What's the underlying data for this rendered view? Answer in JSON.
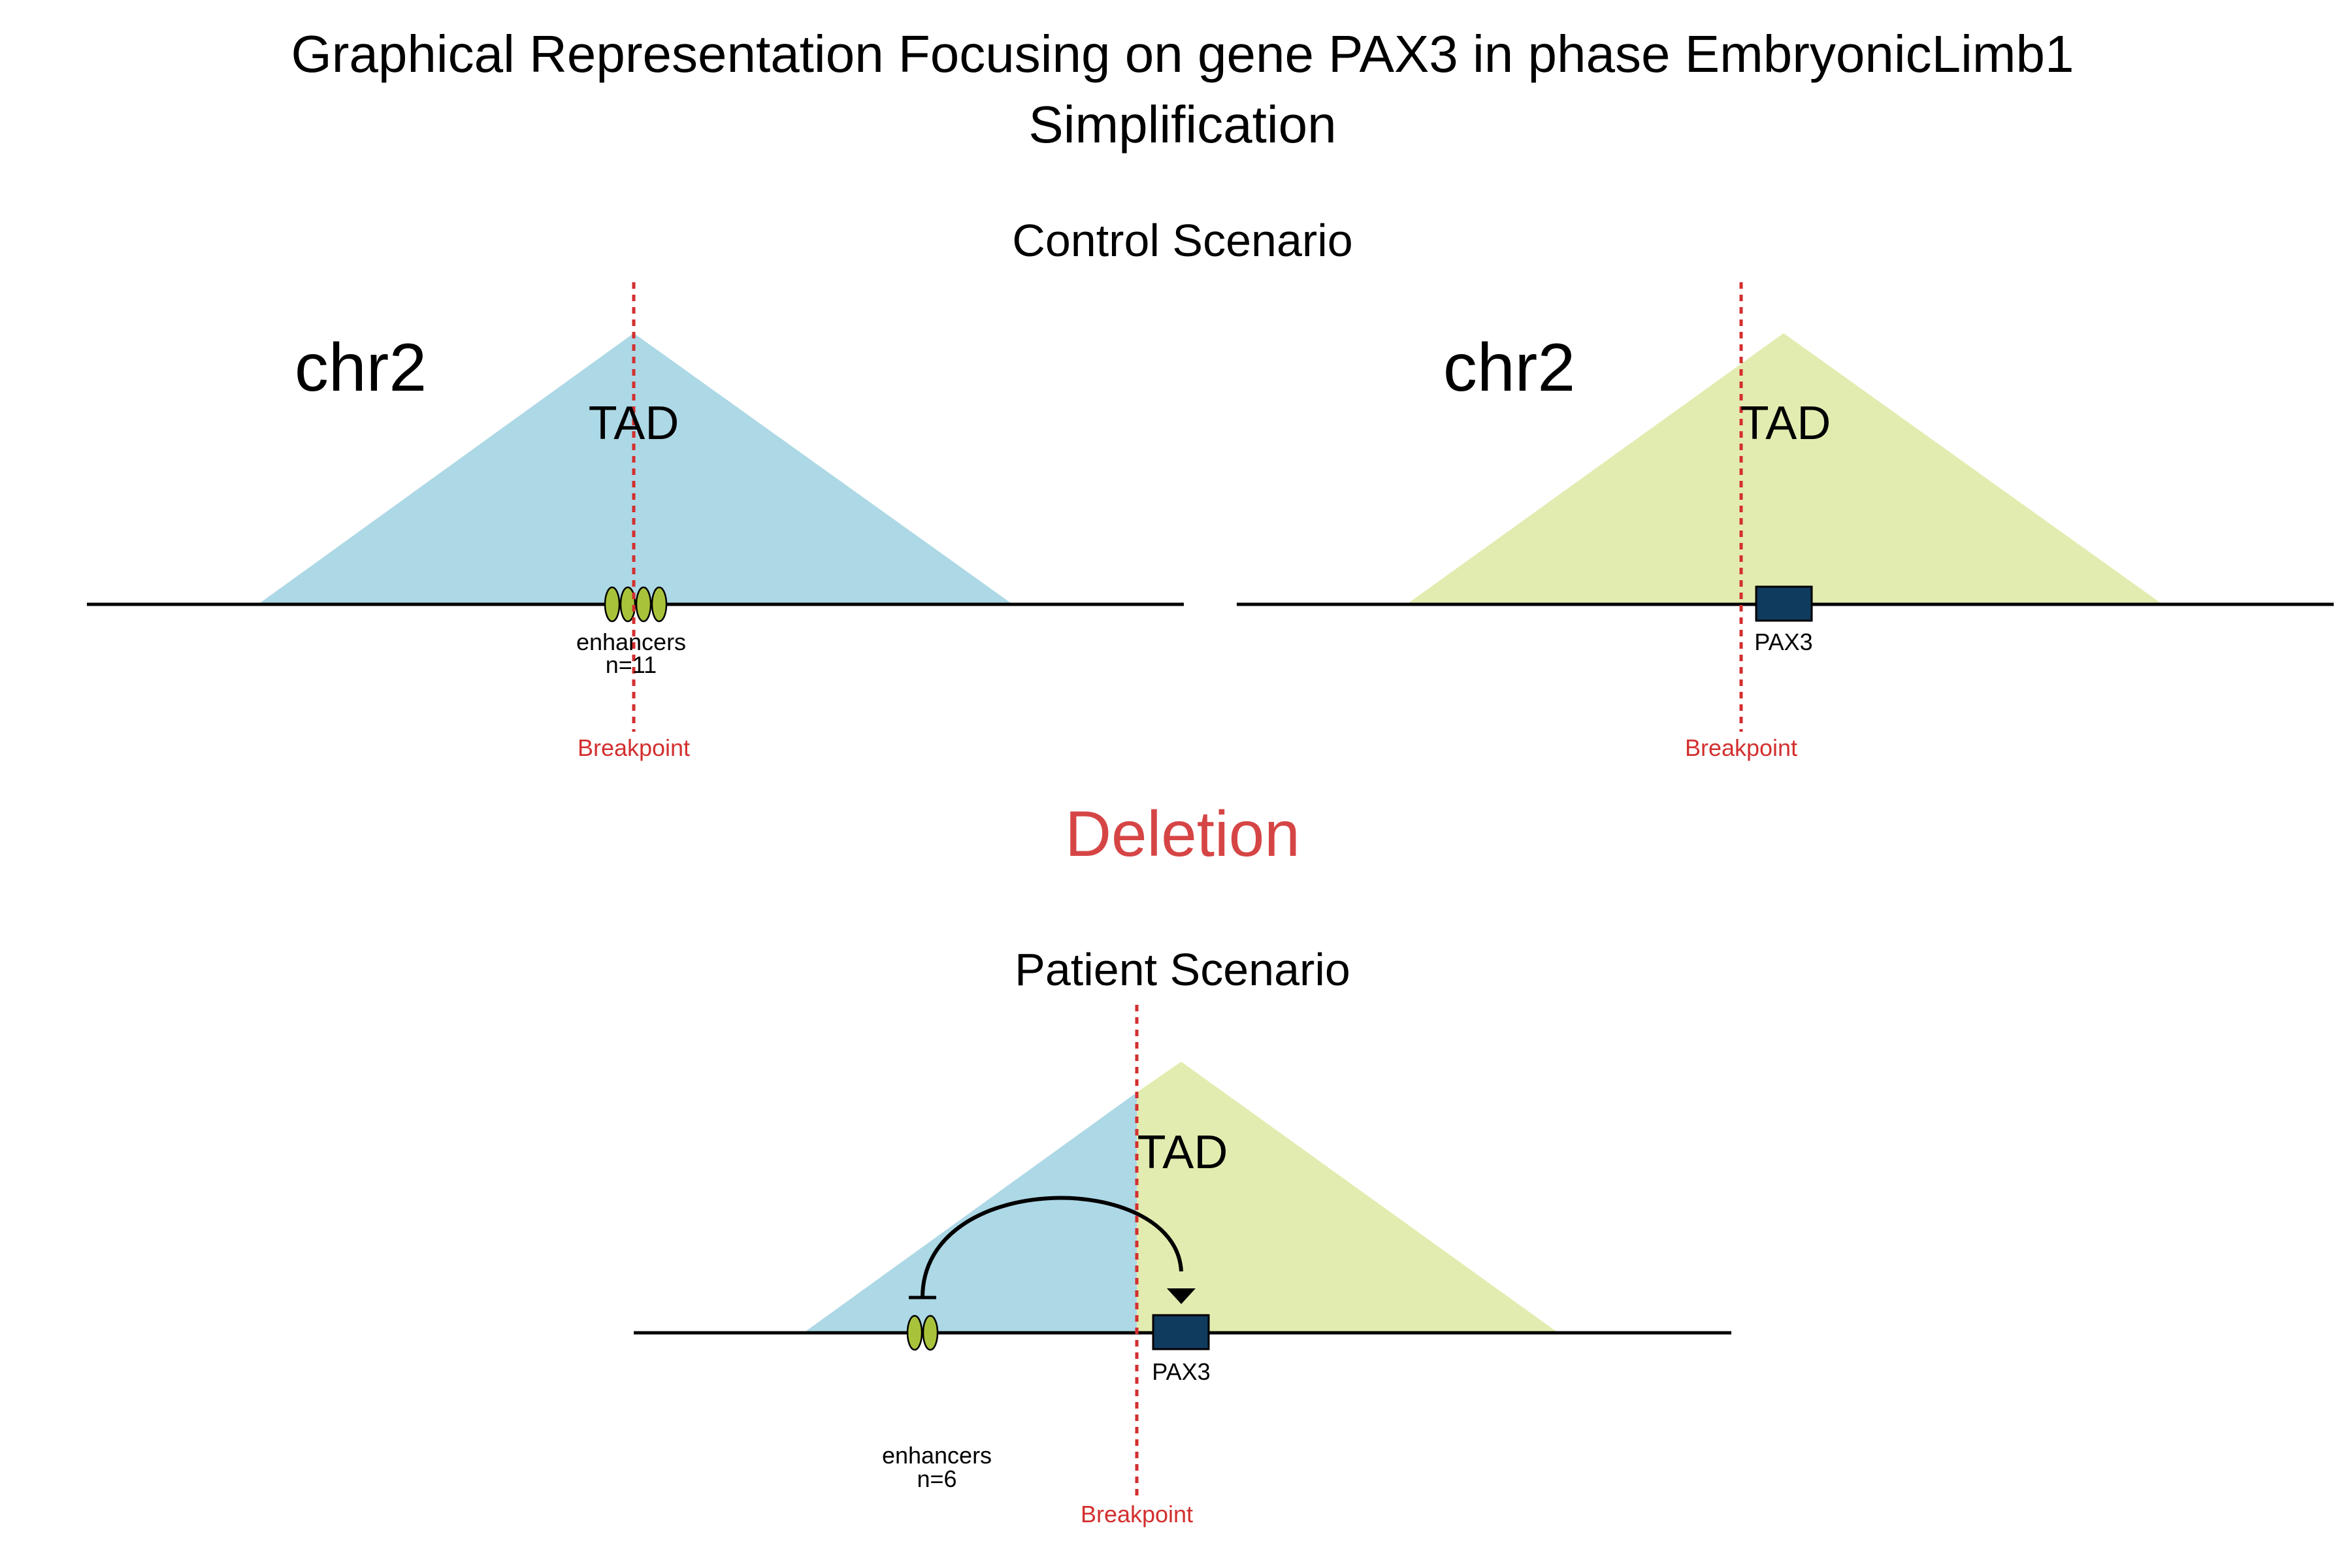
{
  "title": {
    "line1": "Graphical Representation Focusing on gene PAX3 in phase EmbryonicLimb1",
    "line2": "Simplification"
  },
  "colors": {
    "tad_left": "#add8e6",
    "tad_right": "#e3ecb0",
    "gene_fill": "#0f3b5f",
    "enhancer_fill": "#a8c33a",
    "breakpoint": "#d32f2f",
    "event": "#d64545",
    "axis": "#000000"
  },
  "control": {
    "heading": "Control Scenario",
    "left": {
      "chromosome": "chr2",
      "tad_label": "TAD",
      "enhancers_label": "enhancers",
      "enhancers_count": "n=11",
      "breakpoint_label": "Breakpoint"
    },
    "right": {
      "chromosome": "chr2",
      "tad_label": "TAD",
      "gene_label": "PAX3",
      "breakpoint_label": "Breakpoint"
    }
  },
  "event": "Deletion",
  "patient": {
    "heading": "Patient Scenario",
    "tad_label": "TAD",
    "gene_label": "PAX3",
    "enhancers_label": "enhancers",
    "enhancers_count": "n=6",
    "breakpoint_label": "Breakpoint"
  }
}
